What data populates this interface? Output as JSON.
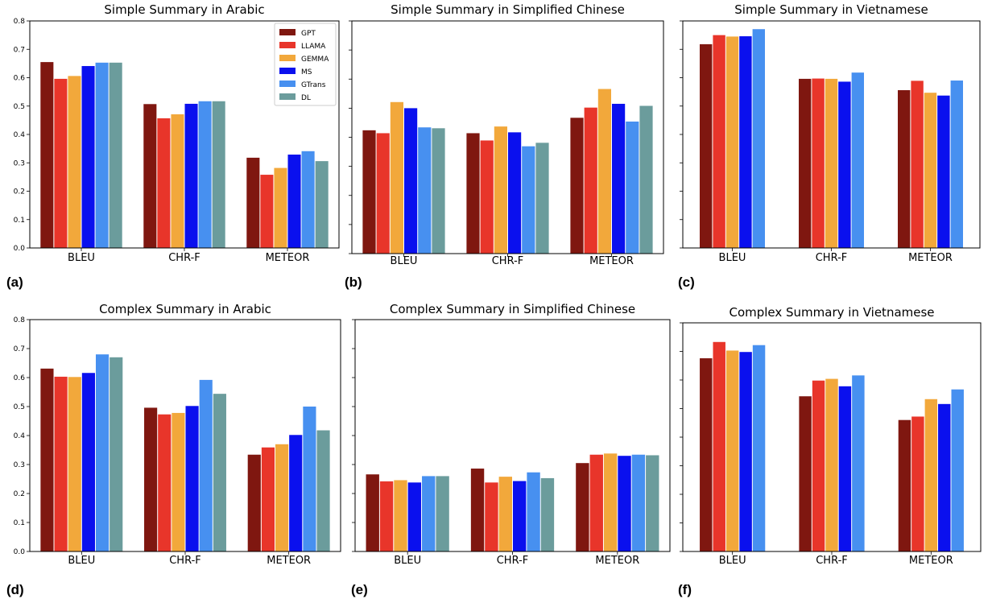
{
  "colors": {
    "GPT": "#7f1710",
    "LLAMA": "#e8352a",
    "GEMMA": "#f2a83b",
    "MS": "#0a10ee",
    "GTrans": "#4790f0",
    "DL": "#6b9c9c"
  },
  "chart_data": [
    {
      "panel": "(a)",
      "type": "bar",
      "title": "Simple Summary in Arabic",
      "categories": [
        "BLEU",
        "CHR-F",
        "METEOR"
      ],
      "ylim": [
        0,
        0.8
      ],
      "yticks": [
        "0.0",
        "0.1",
        "0.2",
        "0.3",
        "0.4",
        "0.5",
        "0.6",
        "0.7",
        "0.8"
      ],
      "show_ytick_labels": true,
      "legend": {
        "location": "top-right"
      },
      "series": [
        {
          "name": "GPT",
          "values": [
            0.655,
            0.507,
            0.318
          ]
        },
        {
          "name": "LLAMA",
          "values": [
            0.596,
            0.457,
            0.258
          ]
        },
        {
          "name": "GEMMA",
          "values": [
            0.606,
            0.471,
            0.282
          ]
        },
        {
          "name": "MS",
          "values": [
            0.641,
            0.508,
            0.329
          ]
        },
        {
          "name": "GTrans",
          "values": [
            0.653,
            0.517,
            0.341
          ]
        },
        {
          "name": "DL",
          "values": [
            0.653,
            0.517,
            0.306
          ]
        }
      ]
    },
    {
      "panel": "(b)",
      "type": "bar",
      "title": "Simple Summary in Simplified Chinese",
      "categories": [
        "BLEU",
        "CHR-F",
        "METEOR"
      ],
      "ylim": [
        0,
        0.8
      ],
      "yticks": [
        "0.0",
        "0.1",
        "0.2",
        "0.3",
        "0.4",
        "0.5",
        "0.6",
        "0.7",
        "0.8"
      ],
      "show_ytick_labels": false,
      "series": [
        {
          "name": "GPT",
          "values": [
            0.424,
            0.414,
            0.467
          ]
        },
        {
          "name": "LLAMA",
          "values": [
            0.414,
            0.389,
            0.502
          ]
        },
        {
          "name": "GEMMA",
          "values": [
            0.521,
            0.437,
            0.566
          ]
        },
        {
          "name": "MS",
          "values": [
            0.5,
            0.417,
            0.515
          ]
        },
        {
          "name": "GTrans",
          "values": [
            0.434,
            0.369,
            0.454
          ]
        },
        {
          "name": "DL",
          "values": [
            0.431,
            0.381,
            0.508
          ]
        }
      ]
    },
    {
      "panel": "(c)",
      "type": "bar",
      "title": "Simple Summary in Vietnamese",
      "categories": [
        "BLEU",
        "CHR-F",
        "METEOR"
      ],
      "ylim": [
        0,
        0.8
      ],
      "yticks": [
        "0.0",
        "0.1",
        "0.2",
        "0.3",
        "0.4",
        "0.5",
        "0.6",
        "0.7",
        "0.8"
      ],
      "show_ytick_labels": false,
      "series": [
        {
          "name": "GPT",
          "values": [
            0.718,
            0.596,
            0.556
          ]
        },
        {
          "name": "LLAMA",
          "values": [
            0.75,
            0.597,
            0.589
          ]
        },
        {
          "name": "GEMMA",
          "values": [
            0.745,
            0.596,
            0.547
          ]
        },
        {
          "name": "MS",
          "values": [
            0.746,
            0.586,
            0.537
          ]
        },
        {
          "name": "GTrans",
          "values": [
            0.771,
            0.618,
            0.59
          ]
        }
      ]
    },
    {
      "panel": "(d)",
      "type": "bar",
      "title": "Complex Summary in Arabic",
      "categories": [
        "BLEU",
        "CHR-F",
        "METEOR"
      ],
      "ylim": [
        0,
        0.8
      ],
      "yticks": [
        "0.0",
        "0.1",
        "0.2",
        "0.3",
        "0.4",
        "0.5",
        "0.6",
        "0.7",
        "0.8"
      ],
      "show_ytick_labels": true,
      "series": [
        {
          "name": "GPT",
          "values": [
            0.631,
            0.496,
            0.334
          ]
        },
        {
          "name": "LLAMA",
          "values": [
            0.603,
            0.473,
            0.359
          ]
        },
        {
          "name": "GEMMA",
          "values": [
            0.602,
            0.478,
            0.37
          ]
        },
        {
          "name": "MS",
          "values": [
            0.616,
            0.502,
            0.402
          ]
        },
        {
          "name": "GTrans",
          "values": [
            0.68,
            0.592,
            0.5
          ]
        },
        {
          "name": "DL",
          "values": [
            0.67,
            0.544,
            0.418
          ]
        }
      ]
    },
    {
      "panel": "(e)",
      "type": "bar",
      "title": "Complex Summary in Simplified Chinese",
      "categories": [
        "BLEU",
        "CHR-F",
        "METEOR"
      ],
      "ylim": [
        0,
        0.8
      ],
      "yticks": [
        "0.0",
        "0.1",
        "0.2",
        "0.3",
        "0.4",
        "0.5",
        "0.6",
        "0.7",
        "0.8"
      ],
      "show_ytick_labels": false,
      "series": [
        {
          "name": "GPT",
          "values": [
            0.266,
            0.286,
            0.305
          ]
        },
        {
          "name": "LLAMA",
          "values": [
            0.242,
            0.238,
            0.334
          ]
        },
        {
          "name": "GEMMA",
          "values": [
            0.246,
            0.258,
            0.338
          ]
        },
        {
          "name": "MS",
          "values": [
            0.238,
            0.243,
            0.33
          ]
        },
        {
          "name": "GTrans",
          "values": [
            0.26,
            0.273,
            0.334
          ]
        },
        {
          "name": "DL",
          "values": [
            0.26,
            0.253,
            0.332
          ]
        }
      ]
    },
    {
      "panel": "(f)",
      "type": "bar",
      "title": "Complex Summary in Vietnamese",
      "categories": [
        "BLEU",
        "CHR-F",
        "METEOR"
      ],
      "ylim": [
        0,
        0.8
      ],
      "yticks": [
        "0.0",
        "0.1",
        "0.2",
        "0.3",
        "0.4",
        "0.5",
        "0.6",
        "0.7",
        "0.8"
      ],
      "show_ytick_labels": false,
      "series": [
        {
          "name": "GPT",
          "values": [
            0.676,
            0.543,
            0.46
          ]
        },
        {
          "name": "LLAMA",
          "values": [
            0.733,
            0.598,
            0.472
          ]
        },
        {
          "name": "GEMMA",
          "values": [
            0.703,
            0.604,
            0.533
          ]
        },
        {
          "name": "MS",
          "values": [
            0.698,
            0.578,
            0.516
          ]
        },
        {
          "name": "GTrans",
          "values": [
            0.722,
            0.616,
            0.567
          ]
        }
      ]
    }
  ]
}
